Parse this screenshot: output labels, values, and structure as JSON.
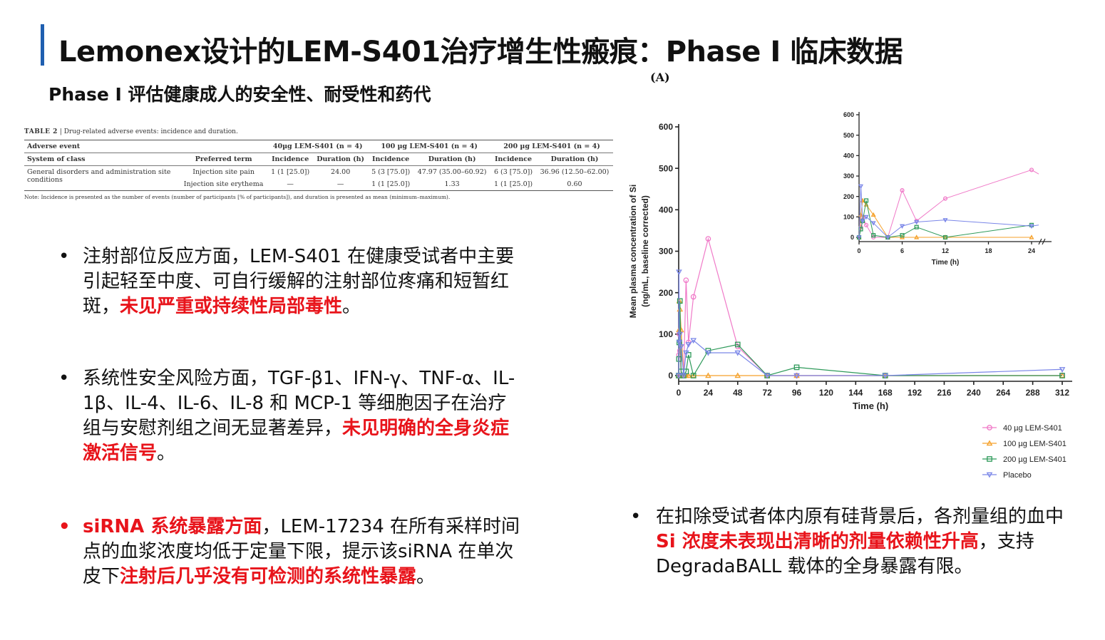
{
  "header": {
    "title": "Lemonex设计的LEM-S401治疗增生性瘢痕：Phase I 临床数据",
    "subtitle": "Phase I 评估健康成人的安全性、耐受性和药代"
  },
  "table": {
    "caption_label": "TABLE 2",
    "caption_sep": "|",
    "caption_text": "Drug-related adverse events: incidence and duration.",
    "adverse_event": "Adverse event",
    "groups": [
      "40µg LEM-S401 (n = 4)",
      "100 µg LEM-S401 (n = 4)",
      "200 µg LEM-S401 (n = 4)"
    ],
    "col_system": "System of class",
    "col_term": "Preferred term",
    "col_incidence": "Incidence",
    "col_duration": "Duration (h)",
    "rows": [
      {
        "system": "General disorders and administration site conditions",
        "term": "Injection site pain",
        "g1_inc": "1 (1 [25.0])",
        "g1_dur": "24.00",
        "g2_inc": "5 (3 [75.0])",
        "g2_dur": "47.97 (35.00–60.92)",
        "g3_inc": "6 (3 [75.0])",
        "g3_dur": "36.96 (12.50–62.00)"
      },
      {
        "system": "",
        "term": "Injection site erythema",
        "g1_inc": "—",
        "g1_dur": "—",
        "g2_inc": "1 (1 [25.0])",
        "g2_dur": "1.33",
        "g3_inc": "1 (1 [25.0])",
        "g3_dur": "0.60"
      }
    ],
    "note": "Note: Incidence is presented as the number of events (number of participants [% of participants]), and duration is presented as mean (minimum–maximum)."
  },
  "bullets": [
    {
      "dot": "•",
      "parts": [
        {
          "text": "注射部位反应方面，LEM-S401 在健康受试者中主要引起轻至中度、可自行缓解的注射部位疼痛和短暂红斑，",
          "red": false
        },
        {
          "text": "未见严重或持续性局部毒性",
          "red": true
        },
        {
          "text": "。",
          "red": false
        }
      ]
    },
    {
      "dot": "•",
      "parts": [
        {
          "text": "系统性安全风险方面，TGF-β1、IFN-γ、TNF-α、IL-1β、IL-4、IL-6、IL-8 和 MCP-1 等细胞因子在治疗组与安慰剂组之间无显著差异，",
          "red": false
        },
        {
          "text": "未见明确的全身炎症激活信号",
          "red": true
        },
        {
          "text": "。",
          "red": false
        }
      ]
    },
    {
      "dot": "•",
      "dot_red": true,
      "parts": [
        {
          "text": "siRNA 系统暴露方面",
          "red": true
        },
        {
          "text": "，LEM-17234 在所有采样时间点的血浆浓度均低于定量下限，提示该siRNA 在单次皮下",
          "red": false
        },
        {
          "text": "注射后几乎没有可检测的系统性暴露",
          "red": true
        },
        {
          "text": "。",
          "red": false
        }
      ]
    }
  ],
  "right_bullet": {
    "dot": "•",
    "parts": [
      {
        "text": "在扣除受试者体内原有硅背景后，各剂量组的血中 ",
        "red": false
      },
      {
        "text": "Si 浓度未表现出清晰的剂量依赖性升高",
        "red": true
      },
      {
        "text": "，支持 DegradaBALL 载体的全身暴露有限。",
        "red": false
      }
    ]
  },
  "chart_data": [
    {
      "type": "line",
      "panel": "(A)",
      "xlabel": "Time (h)",
      "ylabel": "Mean plasma concentration of Si (ng/mL, baseline corrected)",
      "xticks": [
        0,
        24,
        48,
        72,
        96,
        120,
        144,
        168,
        192,
        216,
        240,
        264,
        288,
        312
      ],
      "yticks": [
        0,
        100,
        200,
        300,
        400,
        500,
        600
      ],
      "xlim": [
        0,
        312
      ],
      "ylim": [
        0,
        600
      ],
      "legend_position": "bottom-right",
      "series": [
        {
          "name": "40 µg LEM-S401",
          "color": "#f07ac8",
          "marker": "circle",
          "x": [
            0,
            0.25,
            0.5,
            1,
            2,
            4,
            6,
            8,
            12,
            24,
            48,
            72,
            96,
            168,
            312
          ],
          "y": [
            0,
            50,
            100,
            60,
            0,
            0,
            230,
            80,
            190,
            330,
            70,
            0,
            0,
            0,
            0
          ]
        },
        {
          "name": "100 µg LEM-S401",
          "color": "#f5a12a",
          "marker": "triangle-up",
          "x": [
            0,
            0.25,
            0.5,
            1,
            2,
            4,
            6,
            8,
            12,
            24,
            48,
            72,
            96,
            168,
            312
          ],
          "y": [
            0,
            110,
            180,
            160,
            110,
            0,
            0,
            0,
            0,
            0,
            0,
            0,
            0,
            0,
            0
          ]
        },
        {
          "name": "200 µg LEM-S401",
          "color": "#2e9a5a",
          "marker": "square",
          "x": [
            0,
            0.25,
            0.5,
            1,
            2,
            4,
            6,
            8,
            12,
            24,
            48,
            72,
            96,
            168,
            312
          ],
          "y": [
            0,
            40,
            80,
            180,
            10,
            0,
            10,
            50,
            0,
            60,
            75,
            0,
            20,
            0,
            0
          ]
        },
        {
          "name": "Placebo",
          "color": "#7a86e8",
          "marker": "triangle-down",
          "x": [
            0,
            0.25,
            0.5,
            1,
            2,
            4,
            6,
            8,
            12,
            24,
            48,
            72,
            96,
            168,
            312
          ],
          "y": [
            0,
            250,
            80,
            100,
            70,
            0,
            55,
            75,
            85,
            55,
            55,
            0,
            0,
            0,
            15
          ]
        }
      ]
    },
    {
      "type": "line",
      "panel": "inset",
      "xlabel": "Time (h)",
      "xticks": [
        0,
        6,
        12,
        18,
        24
      ],
      "yticks": [
        0,
        100,
        200,
        300,
        400,
        500,
        600
      ],
      "xlim": [
        0,
        24
      ],
      "ylim": [
        0,
        600
      ],
      "series": [
        {
          "name": "40 µg LEM-S401",
          "x": [
            0,
            0.25,
            0.5,
            1,
            2,
            4,
            6,
            8,
            12,
            24,
            25
          ],
          "y": [
            0,
            50,
            100,
            60,
            0,
            0,
            230,
            80,
            190,
            330,
            310
          ]
        },
        {
          "name": "100 µg LEM-S401",
          "x": [
            0,
            0.25,
            0.5,
            1,
            2,
            4,
            6,
            8,
            12,
            24
          ],
          "y": [
            0,
            110,
            180,
            160,
            110,
            0,
            0,
            0,
            0,
            0
          ]
        },
        {
          "name": "200 µg LEM-S401",
          "x": [
            0,
            0.25,
            0.5,
            1,
            2,
            4,
            6,
            8,
            12,
            24
          ],
          "y": [
            0,
            40,
            80,
            180,
            10,
            0,
            10,
            50,
            0,
            60
          ]
        },
        {
          "name": "Placebo",
          "x": [
            0,
            0.25,
            0.5,
            1,
            2,
            4,
            6,
            8,
            12,
            24,
            25
          ],
          "y": [
            0,
            250,
            80,
            100,
            70,
            0,
            55,
            75,
            85,
            55,
            60
          ]
        }
      ]
    }
  ]
}
